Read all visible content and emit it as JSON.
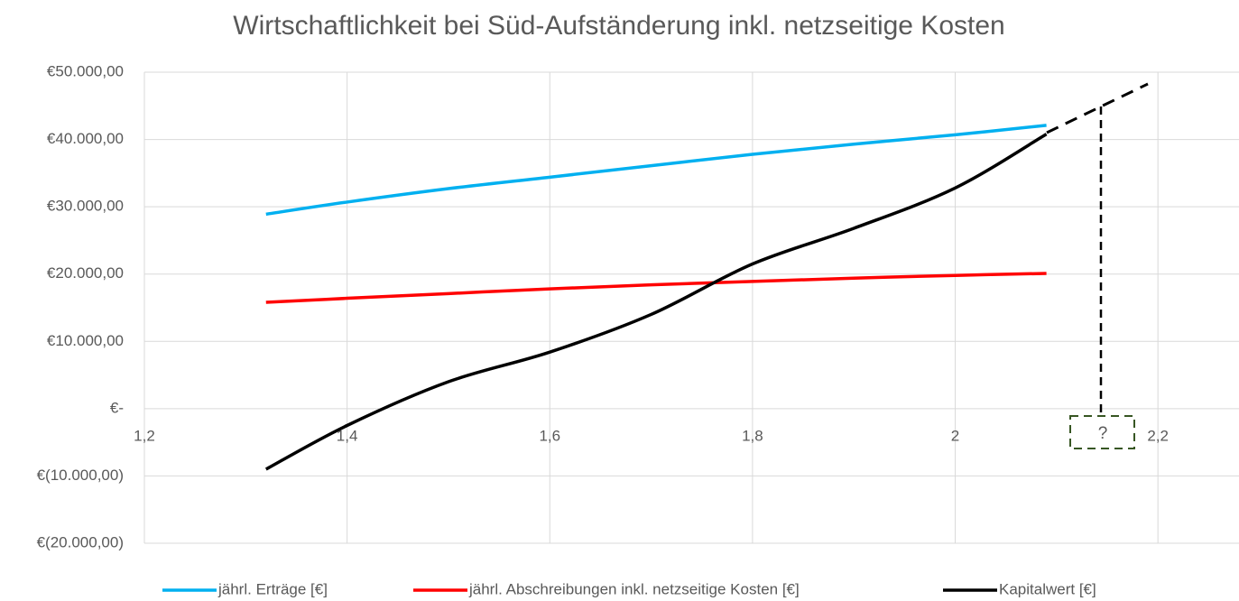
{
  "chart_data": {
    "type": "line",
    "title": "Wirtschaftlichkeit bei Süd-Aufständerung inkl. netzseitige Kosten",
    "x": [
      1.32,
      1.4,
      1.5,
      1.6,
      1.7,
      1.8,
      1.9,
      2.0,
      2.09
    ],
    "series": [
      {
        "name": "jährl. Erträge [€]",
        "color": "#00b0f0",
        "values": [
          28900,
          30700,
          32700,
          34400,
          36100,
          37800,
          39300,
          40700,
          42100
        ]
      },
      {
        "name": "jährl. Abschreibungen inkl. netzseitige Kosten [€]",
        "color": "#ff0000",
        "values": [
          15800,
          16400,
          17100,
          17800,
          18400,
          18900,
          19400,
          19800,
          20100
        ]
      },
      {
        "name": "Kapitalwert [€]",
        "color": "#000000",
        "values": [
          -9000,
          -2500,
          4000,
          8400,
          14000,
          21500,
          26800,
          32800,
          40800
        ]
      }
    ],
    "xlim": [
      1.2,
      2.28
    ],
    "xticks": [
      {
        "value": 1.2,
        "label": "1,2"
      },
      {
        "value": 1.4,
        "label": "1,4"
      },
      {
        "value": 1.6,
        "label": "1,6"
      },
      {
        "value": 1.8,
        "label": "1,8"
      },
      2,
      {
        "value": 2.2,
        "label": "2,2"
      }
    ],
    "ylim": [
      -20000,
      50000
    ],
    "yticks": [
      {
        "value": -20000,
        "label": "€(20.000,00)"
      },
      {
        "value": -10000,
        "label": "€(10.000,00)"
      },
      {
        "value": 0,
        "label": "€-"
      },
      {
        "value": 10000,
        "label": "€10.000,00"
      },
      {
        "value": 20000,
        "label": "€20.000,00"
      },
      {
        "value": 30000,
        "label": "€30.000,00"
      },
      {
        "value": 40000,
        "label": "€40.000,00"
      },
      {
        "value": 50000,
        "label": "€50.000,00"
      }
    ],
    "grid": true,
    "legend": "bottom",
    "annotations": [
      "?"
    ]
  }
}
